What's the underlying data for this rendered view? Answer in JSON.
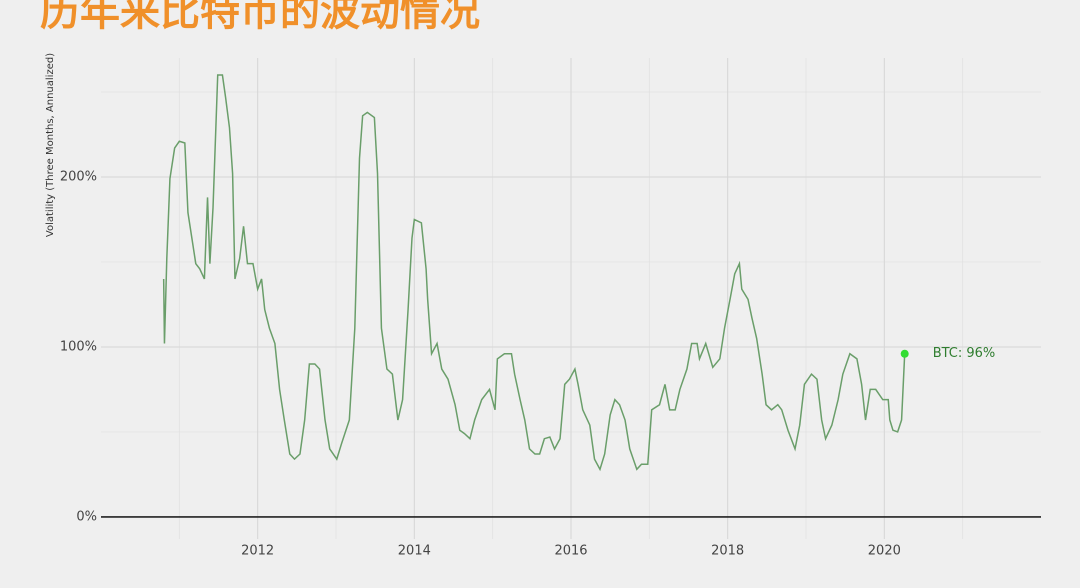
{
  "chart_data": {
    "type": "line",
    "title": "历年来比特币的波动情况",
    "y_label": "Volatility (Three Months, Annualized)",
    "xlim": [
      2010,
      2022
    ],
    "ylim": [
      -13,
      270
    ],
    "xticks": [
      2012,
      2014,
      2016,
      2018,
      2020
    ],
    "yticks": [
      {
        "value": 0,
        "label": "0%"
      },
      {
        "value": 100,
        "label": "100%"
      },
      {
        "value": 200,
        "label": "200%"
      }
    ],
    "x_minor_grid": [
      2011,
      2013,
      2015,
      2017,
      2019,
      2021
    ],
    "y_minor_grid": [
      50,
      150,
      250
    ],
    "grid": true,
    "zero_line": true,
    "x": [
      2010.8,
      2010.81,
      2010.84,
      2010.88,
      2010.94,
      2011.0,
      2011.07,
      2011.11,
      2011.16,
      2011.21,
      2011.26,
      2011.32,
      2011.36,
      2011.39,
      2011.43,
      2011.49,
      2011.55,
      2011.59,
      2011.64,
      2011.68,
      2011.71,
      2011.77,
      2011.82,
      2011.87,
      2011.94,
      2012.0,
      2012.05,
      2012.09,
      2012.15,
      2012.22,
      2012.28,
      2012.34,
      2012.41,
      2012.47,
      2012.54,
      2012.6,
      2012.66,
      2012.73,
      2012.79,
      2012.86,
      2012.92,
      2013.01,
      2013.07,
      2013.17,
      2013.24,
      2013.3,
      2013.34,
      2013.4,
      2013.49,
      2013.53,
      2013.58,
      2013.65,
      2013.72,
      2013.79,
      2013.85,
      2013.92,
      2013.97,
      2014.0,
      2014.09,
      2014.15,
      2014.17,
      2014.22,
      2014.29,
      2014.35,
      2014.43,
      2014.52,
      2014.58,
      2014.64,
      2014.71,
      2014.77,
      2014.86,
      2014.96,
      2015.03,
      2015.06,
      2015.15,
      2015.24,
      2015.28,
      2015.35,
      2015.41,
      2015.47,
      2015.54,
      2015.6,
      2015.66,
      2015.73,
      2015.79,
      2015.86,
      2015.92,
      2015.98,
      2016.05,
      2016.09,
      2016.15,
      2016.24,
      2016.3,
      2016.37,
      2016.43,
      2016.5,
      2016.56,
      2016.62,
      2016.69,
      2016.75,
      2016.84,
      2016.9,
      2016.98,
      2017.03,
      2017.13,
      2017.2,
      2017.26,
      2017.33,
      2017.39,
      2017.48,
      2017.54,
      2017.61,
      2017.64,
      2017.72,
      2017.81,
      2017.9,
      2017.96,
      2018.03,
      2018.09,
      2018.15,
      2018.18,
      2018.26,
      2018.31,
      2018.37,
      2018.44,
      2018.49,
      2018.56,
      2018.64,
      2018.69,
      2018.77,
      2018.86,
      2018.92,
      2018.98,
      2019.07,
      2019.14,
      2019.2,
      2019.25,
      2019.33,
      2019.41,
      2019.47,
      2019.56,
      2019.65,
      2019.71,
      2019.76,
      2019.82,
      2019.89,
      2019.98,
      2020.05,
      2020.07,
      2020.11,
      2020.17,
      2020.22,
      2020.26
    ],
    "series": [
      {
        "name": "BTC",
        "color": "#6a9e6a",
        "values": [
          140,
          102,
          152,
          199,
          217,
          221,
          220,
          179,
          164,
          149,
          146,
          140,
          188,
          149,
          182,
          260,
          260,
          247,
          229,
          202,
          140,
          152,
          171,
          149,
          149,
          134,
          140,
          122,
          111,
          102,
          75,
          57,
          37,
          34,
          37,
          57,
          90,
          90,
          87,
          57,
          40,
          34,
          43,
          57,
          111,
          211,
          236,
          238,
          235,
          202,
          111,
          87,
          84,
          57,
          69,
          122,
          164,
          175,
          173,
          146,
          128,
          96,
          102,
          87,
          81,
          66,
          51,
          49,
          46,
          57,
          69,
          75,
          63,
          93,
          96,
          96,
          84,
          69,
          57,
          40,
          37,
          37,
          46,
          47,
          40,
          46,
          78,
          81,
          87,
          78,
          63,
          54,
          34,
          28,
          37,
          60,
          69,
          66,
          57,
          40,
          28,
          31,
          31,
          63,
          66,
          78,
          63,
          63,
          75,
          87,
          102,
          102,
          93,
          102,
          88,
          93,
          111,
          128,
          143,
          149,
          134,
          128,
          117,
          105,
          84,
          66,
          63,
          66,
          63,
          51,
          40,
          54,
          78,
          84,
          81,
          57,
          46,
          54,
          69,
          84,
          96,
          93,
          78,
          57,
          75,
          75,
          69,
          69,
          57,
          51,
          50,
          57,
          96
        ]
      }
    ],
    "annotation": {
      "text": "BTC: 96%",
      "x": 2020.26,
      "y": 96,
      "color": "#33dd33",
      "text_color": "#2f7d2f"
    }
  }
}
